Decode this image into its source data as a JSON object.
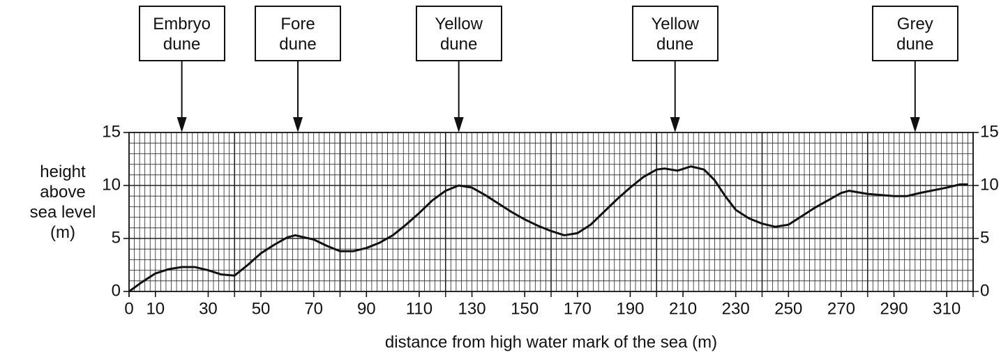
{
  "chart_data": {
    "type": "line",
    "xlabel": "distance from high water mark of the sea (m)",
    "ylabel": "height\nabove\nsea level\n(m)",
    "xlim": [
      0,
      320
    ],
    "ylim": [
      0,
      15
    ],
    "xticks": [
      0,
      10,
      30,
      50,
      70,
      90,
      110,
      130,
      150,
      170,
      190,
      210,
      230,
      250,
      270,
      290,
      310
    ],
    "yticks": [
      0,
      5,
      10,
      15
    ],
    "grid": true,
    "series": [
      {
        "name": "height",
        "color": "#111111",
        "x": [
          0,
          5,
          10,
          15,
          20,
          25,
          30,
          35,
          40,
          45,
          50,
          55,
          60,
          63,
          70,
          75,
          80,
          85,
          90,
          95,
          100,
          105,
          110,
          115,
          120,
          125,
          130,
          135,
          140,
          145,
          150,
          155,
          160,
          165,
          170,
          175,
          180,
          185,
          190,
          195,
          200,
          203,
          208,
          213,
          218,
          222,
          226,
          230,
          235,
          240,
          245,
          250,
          255,
          260,
          265,
          270,
          273,
          280,
          290,
          295,
          300,
          310,
          315,
          318
        ],
        "values": [
          0,
          0.9,
          1.7,
          2.1,
          2.3,
          2.3,
          2.0,
          1.6,
          1.5,
          2.5,
          3.6,
          4.4,
          5.1,
          5.3,
          4.9,
          4.3,
          3.8,
          3.8,
          4.1,
          4.6,
          5.3,
          6.3,
          7.4,
          8.6,
          9.5,
          10.0,
          9.8,
          9.1,
          8.3,
          7.5,
          6.8,
          6.2,
          5.7,
          5.3,
          5.5,
          6.3,
          7.5,
          8.7,
          9.8,
          10.8,
          11.5,
          11.6,
          11.4,
          11.8,
          11.5,
          10.5,
          9.0,
          7.7,
          6.9,
          6.4,
          6.1,
          6.3,
          7.1,
          7.9,
          8.6,
          9.3,
          9.5,
          9.2,
          9.0,
          9.0,
          9.3,
          9.8,
          10.1,
          10.1
        ]
      }
    ],
    "annotations": [
      {
        "text": "Embryo\ndune",
        "x": 20
      },
      {
        "text": "Fore\ndune",
        "x": 64
      },
      {
        "text": "Yellow\ndune",
        "x": 125
      },
      {
        "text": "Yellow\ndune",
        "x": 207
      },
      {
        "text": "Grey\ndune",
        "x": 298
      }
    ]
  }
}
